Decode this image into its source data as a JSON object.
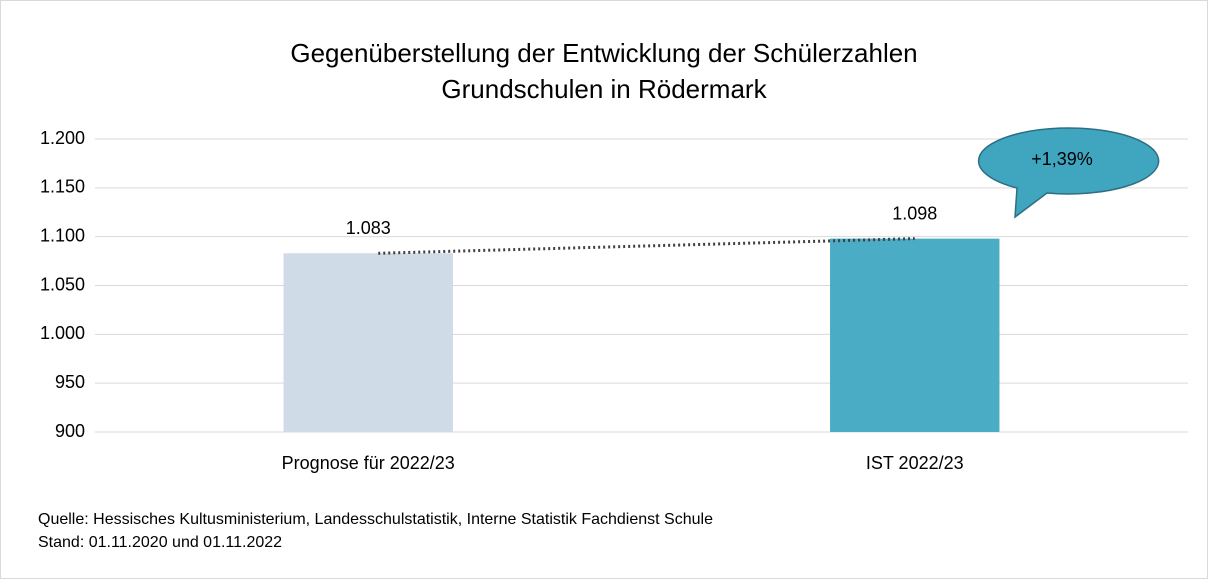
{
  "chart_data": {
    "type": "bar",
    "title": "Gegenüberstellung der Entwicklung der Schülerzahlen",
    "subtitle": "Grundschulen in Rödermark",
    "categories": [
      "Prognose für 2022/23",
      "IST 2022/23"
    ],
    "values": [
      1083,
      1098
    ],
    "value_labels": [
      "1.083",
      "1.098"
    ],
    "colors": [
      "#cfdbe6",
      "#4bacc6"
    ],
    "ylim": [
      900,
      1200
    ],
    "yticks": [
      900,
      950,
      {
        "value": 1000,
        "label": "1.000"
      },
      {
        "value": 1050,
        "label": "1.050"
      },
      {
        "value": 1100,
        "label": "1.100"
      },
      {
        "value": 1150,
        "label": "1.150"
      },
      {
        "value": 1200,
        "label": "1.200"
      }
    ],
    "grid": true,
    "annotation": "+1,39%",
    "notes": [
      "Quelle: Hessisches Kultusministerium, Landesschulstatistik, Interne Statistik Fachdienst Schule",
      "Stand: 01.11.2020 und 01.11.2022"
    ]
  }
}
